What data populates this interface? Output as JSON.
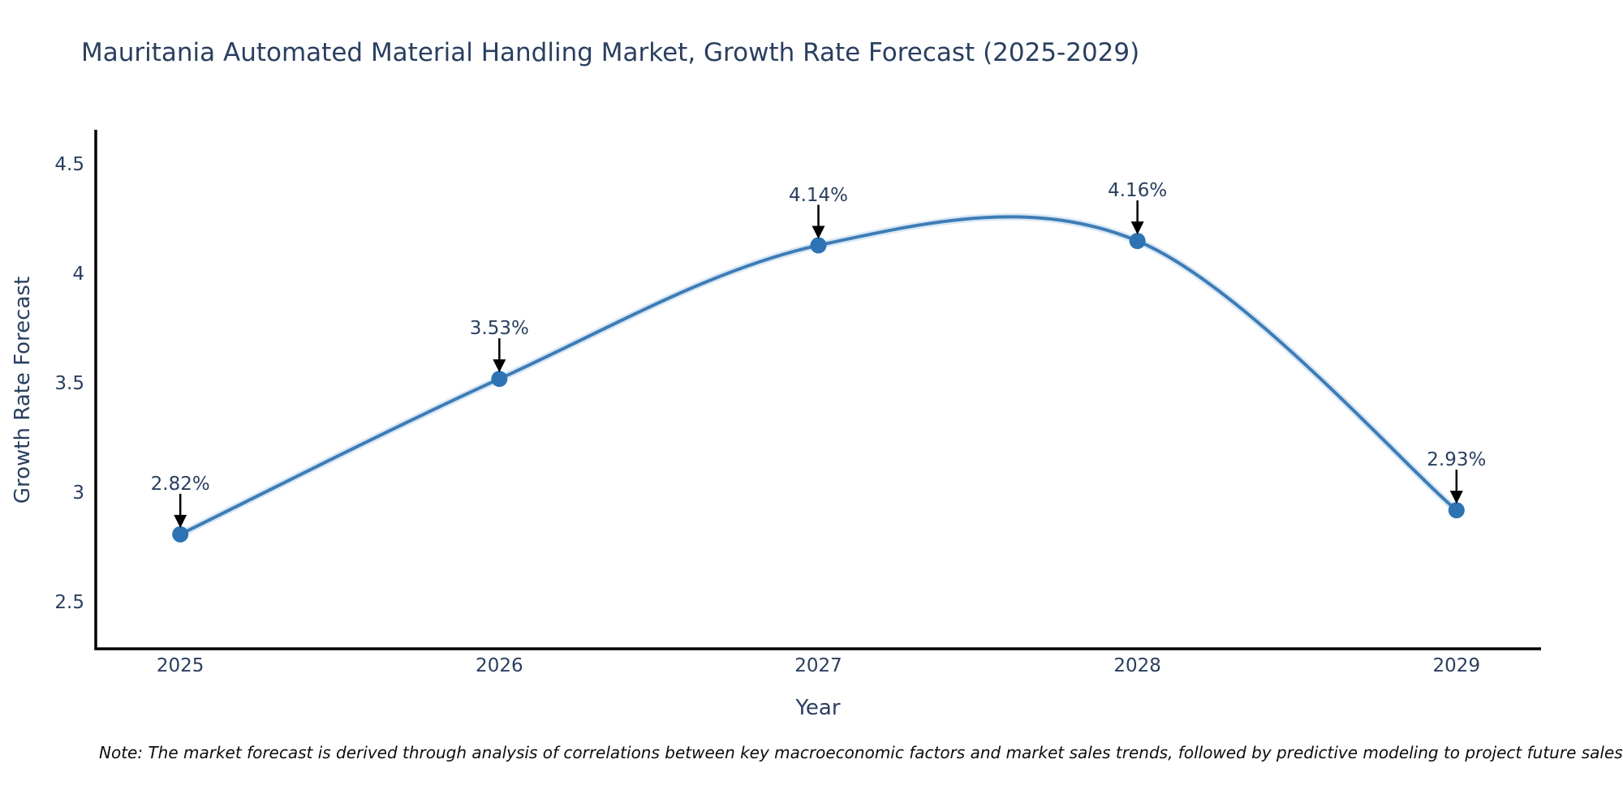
{
  "title": "Mauritania Automated Material Handling Market, Growth Rate Forecast (2025-2029)",
  "note": "Note: The market forecast is derived through analysis of correlations between key macroeconomic factors and market sales trends, followed by predictive modeling to project future sales",
  "chart_data": {
    "type": "line",
    "x": [
      2025,
      2026,
      2027,
      2028,
      2029
    ],
    "values": [
      2.82,
      3.53,
      4.14,
      4.16,
      2.93
    ],
    "point_labels": [
      "2.82%",
      "3.53%",
      "4.14%",
      "4.16%",
      "2.93%"
    ],
    "categories": [
      "2025",
      "2026",
      "2027",
      "2028",
      "2029"
    ],
    "title": "Mauritania Automated Material Handling Market, Growth Rate Forecast (2025-2029)",
    "xlabel": "Year",
    "ylabel": "Growth Rate Forecast",
    "yticks": [
      2.5,
      3,
      3.5,
      4,
      4.5
    ],
    "ytick_labels": [
      "2.5",
      "3",
      "3.5",
      "4",
      "4.5"
    ],
    "xlim": [
      2024.735,
      2029.265
    ],
    "ylim": [
      2.297,
      4.668
    ],
    "grid": false,
    "legend": "none",
    "smooth": true,
    "line_color": "#3e7cb6",
    "line_halo_color": "#b9d6ec",
    "marker_color": "#2e73b3",
    "arrow_color": "#000000",
    "axis_color": "#000000",
    "text_color": "#2a3f5f"
  }
}
